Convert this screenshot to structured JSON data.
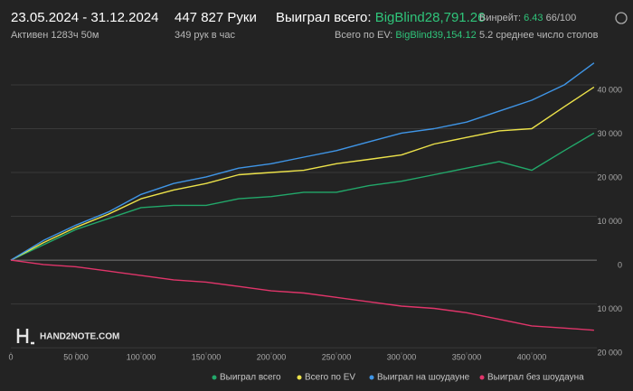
{
  "chart_data": {
    "type": "line",
    "header": {
      "period": "23.05.2024 - 31.12.2024",
      "active": "Активен 1283ч 50м",
      "hands": "447 827 Руки",
      "hands_per_hour": "349 рук в час",
      "won_label": "Выиграл всего:",
      "won_value": "BigBlind28,791.26",
      "ev_label": "Всего по EV:",
      "ev_value": "BigBlind39,154.12",
      "winrate_label": "Винрейт:",
      "winrate_value": "6.43",
      "winrate_unit": "66/100",
      "tables": "5.2 среднее число столов"
    },
    "watermark": "HAND2NOTE.COM",
    "x": [
      0,
      25000,
      50000,
      75000,
      100000,
      125000,
      150000,
      175000,
      200000,
      225000,
      250000,
      275000,
      300000,
      325000,
      350000,
      375000,
      400000,
      425000,
      447827
    ],
    "series": [
      {
        "name": "Выиграл всего",
        "color": "#22a86a",
        "values": [
          0,
          3500,
          7000,
          9500,
          12000,
          12500,
          12500,
          14000,
          14500,
          15500,
          15500,
          17000,
          18000,
          19500,
          21000,
          22500,
          20500,
          25000,
          29000
        ]
      },
      {
        "name": "Всего по EV",
        "color": "#ece24a",
        "values": [
          0,
          4000,
          7500,
          10500,
          14000,
          16000,
          17500,
          19500,
          20000,
          20500,
          22000,
          23000,
          24000,
          26500,
          28000,
          29500,
          30000,
          35000,
          39500
        ]
      },
      {
        "name": "Выиграл на шоудауне",
        "color": "#3f95e6",
        "values": [
          0,
          4500,
          8000,
          11000,
          15000,
          17500,
          19000,
          21000,
          22000,
          23500,
          25000,
          27000,
          29000,
          30000,
          31500,
          34000,
          36500,
          40000,
          45000
        ]
      },
      {
        "name": "Выиграл без шоудауна",
        "color": "#e0356a",
        "values": [
          0,
          -1000,
          -1500,
          -2500,
          -3500,
          -4500,
          -5000,
          -6000,
          -7000,
          -7500,
          -8500,
          -9500,
          -10500,
          -11000,
          -12000,
          -13500,
          -15000,
          -15500,
          -16000
        ]
      }
    ],
    "xlim": [
      0,
      450000
    ],
    "xticks": [
      0,
      {
        "value": 50000,
        "label": "50 000"
      },
      {
        "value": 100000,
        "label": "100 000"
      },
      {
        "value": 150000,
        "label": "150 000"
      },
      {
        "value": 200000,
        "label": "200 000"
      },
      {
        "value": 250000,
        "label": "250 000"
      },
      {
        "value": 300000,
        "label": "300 000"
      },
      {
        "value": 350000,
        "label": "350 000"
      },
      {
        "value": 400000,
        "label": "400 000"
      }
    ],
    "ylim": [
      -21000,
      47000
    ],
    "yticks": [
      {
        "value": -20000,
        "label": "20 000"
      },
      {
        "value": -10000,
        "label": "10 000"
      },
      0,
      {
        "value": 10000,
        "label": "10 000"
      },
      {
        "value": 20000,
        "label": "20 000"
      },
      {
        "value": 30000,
        "label": "30 000"
      },
      {
        "value": 40000,
        "label": "40 000"
      }
    ],
    "grid": true
  }
}
